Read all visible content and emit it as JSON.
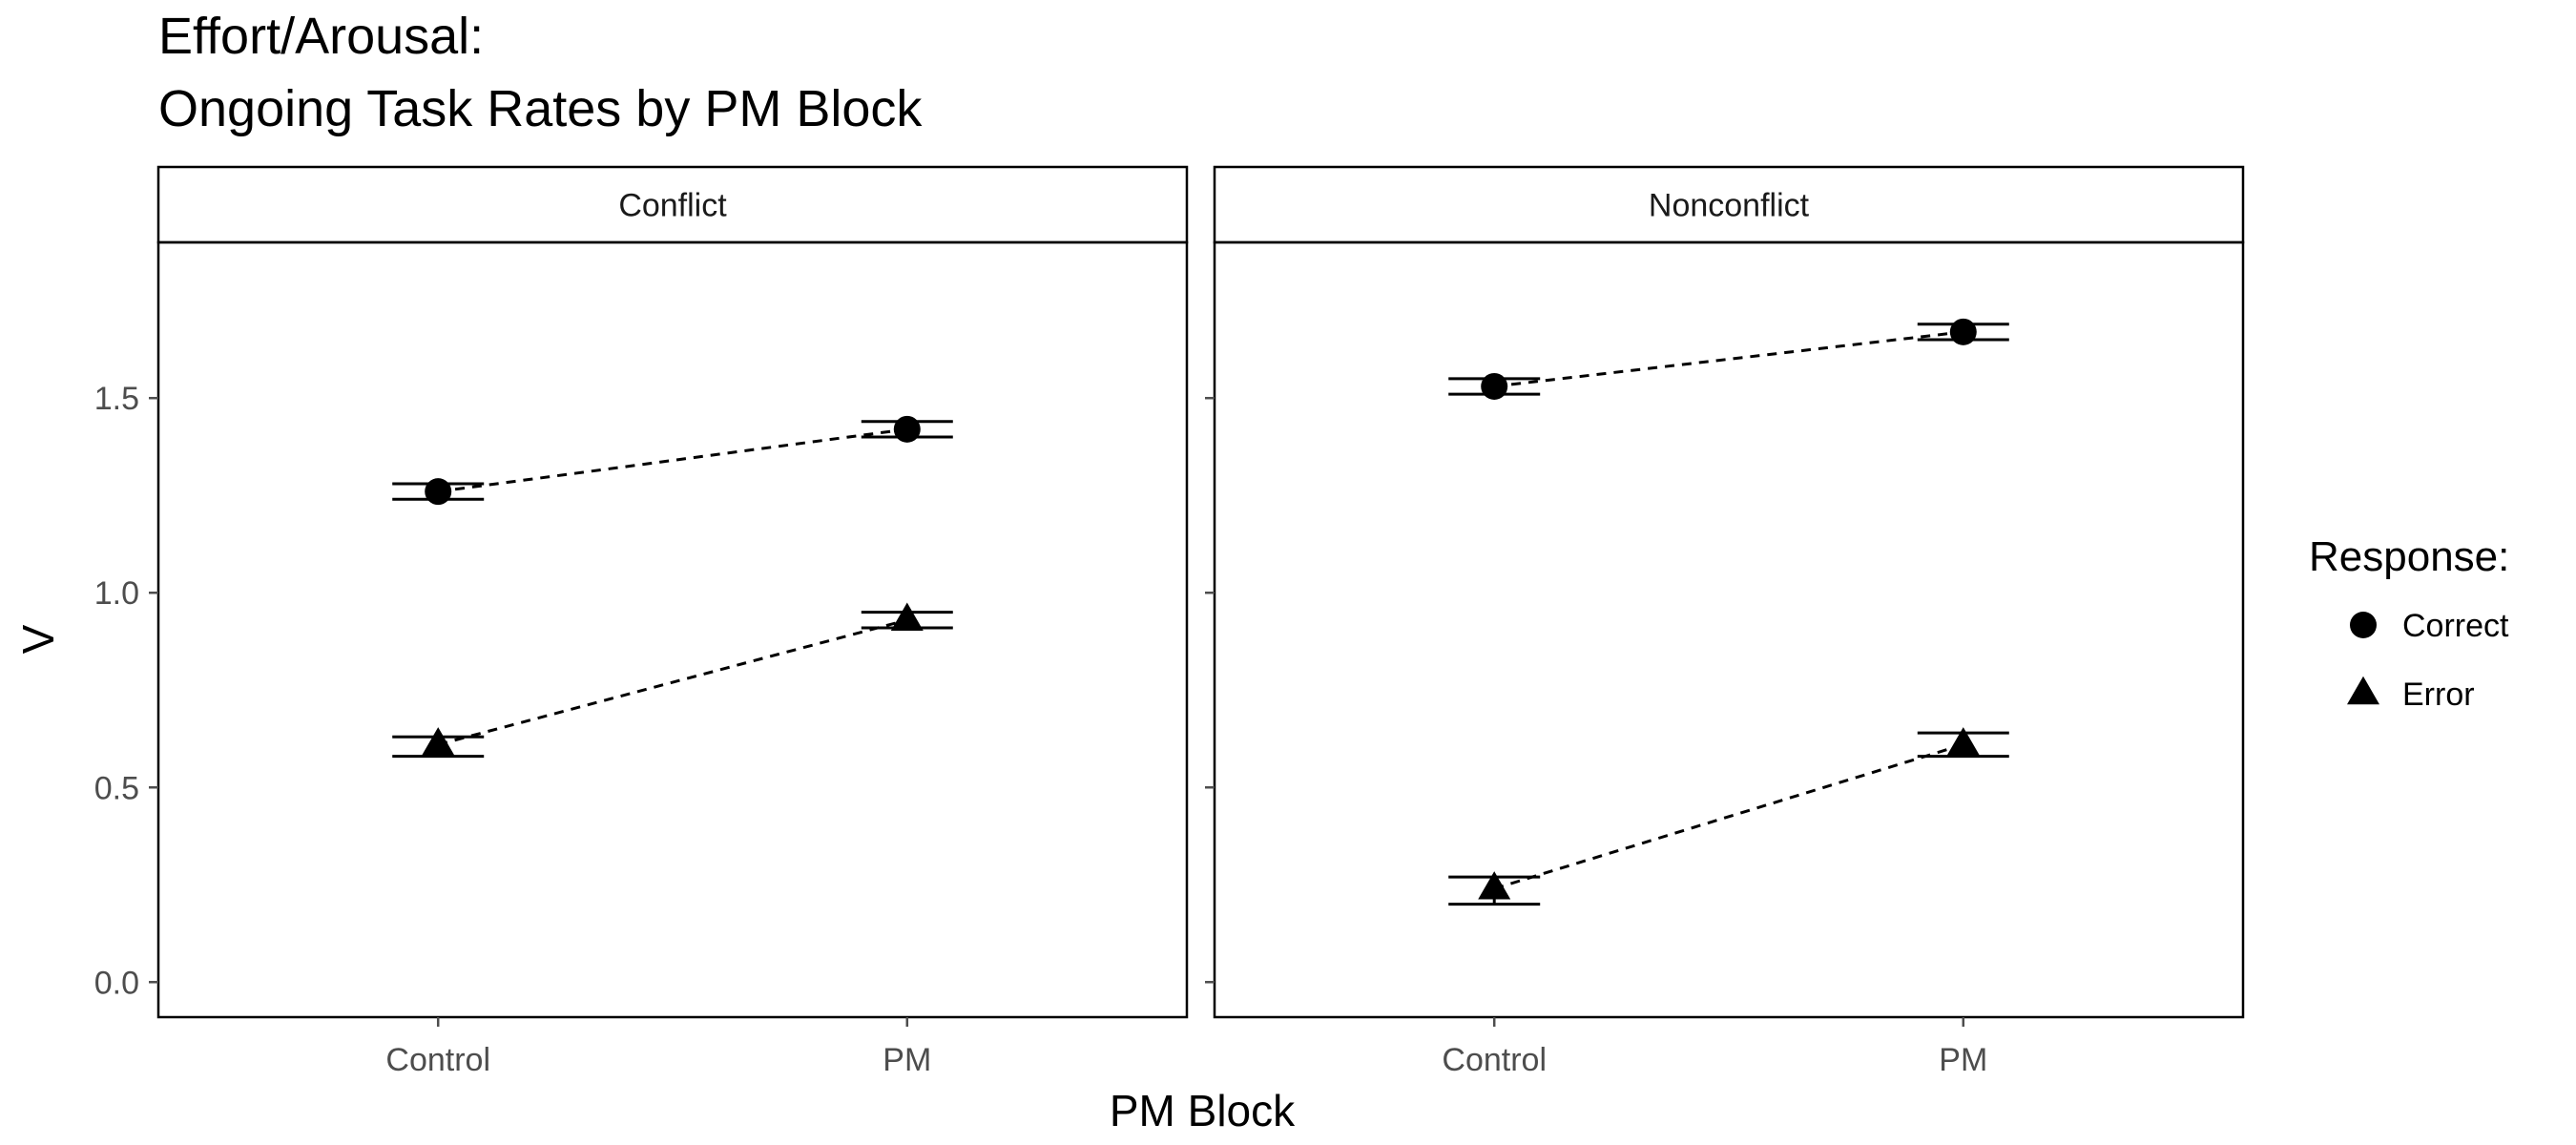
{
  "title_lines": [
    "Effort/Arousal:",
    "Ongoing Task Rates by PM Block"
  ],
  "chart_data": {
    "type": "line",
    "title": "Effort/Arousal: Ongoing Task Rates by PM Block",
    "xlabel": "PM Block",
    "ylabel": "V",
    "categories": [
      "Control",
      "PM"
    ],
    "ylim": [
      -0.09,
      1.9
    ],
    "yticks": [
      0.0,
      0.5,
      1.0,
      1.5
    ],
    "ytick_labels": [
      "0.0",
      "0.5",
      "1.0",
      "1.5"
    ],
    "grid": false,
    "legend": {
      "title": "Response:",
      "position": "right",
      "entries": [
        {
          "label": "Correct",
          "shape": "circle"
        },
        {
          "label": "Error",
          "shape": "triangle"
        }
      ]
    },
    "panels": [
      {
        "label": "Conflict",
        "series": [
          {
            "name": "Correct",
            "values": [
              1.26,
              1.42
            ],
            "err_low": [
              1.24,
              1.4
            ],
            "err_high": [
              1.28,
              1.44
            ]
          },
          {
            "name": "Error",
            "values": [
              0.61,
              0.93
            ],
            "err_low": [
              0.58,
              0.91
            ],
            "err_high": [
              0.63,
              0.95
            ]
          }
        ]
      },
      {
        "label": "Nonconflict",
        "series": [
          {
            "name": "Correct",
            "values": [
              1.53,
              1.67
            ],
            "err_low": [
              1.51,
              1.65
            ],
            "err_high": [
              1.55,
              1.69
            ]
          },
          {
            "name": "Error",
            "values": [
              0.24,
              0.61
            ],
            "err_low": [
              0.2,
              0.58
            ],
            "err_high": [
              0.27,
              0.64
            ]
          }
        ]
      }
    ]
  },
  "colors": {
    "ink": "#000000",
    "tick": "#4d4d4d"
  }
}
